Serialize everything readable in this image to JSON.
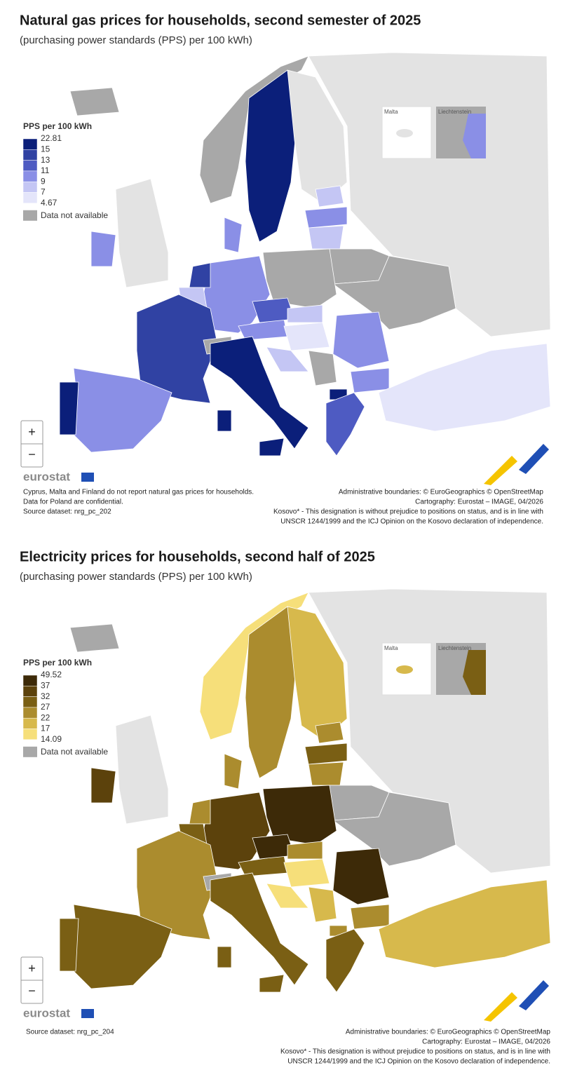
{
  "maps": [
    {
      "title": "Natural gas prices for households, second semester of 2025",
      "subtitle": "(purchasing power standards (PPS) per 100 kWh)",
      "legend": {
        "title": "PPS per 100 kWh",
        "breaks": [
          22.81,
          15,
          13,
          11,
          9,
          7,
          4.67
        ],
        "colors": [
          "#0b1f7a",
          "#3042a3",
          "#4e5bc2",
          "#8a8fe6",
          "#c4c6f4",
          "#e4e5fa"
        ],
        "na_label": "Data not available"
      },
      "insets": [
        "Malta",
        "Liechtenstein"
      ],
      "controls": [
        "+",
        "−"
      ],
      "logo": "eurostat",
      "notes_left": [
        "Cyprus, Malta and Finland do not report natural gas prices for households.",
        "Data for Poland are confidential.",
        "Source dataset: nrg_pc_202"
      ],
      "notes_right": [
        "Administrative boundaries: © EuroGeographics © OpenStreetMap",
        "Cartography: Eurostat – IMAGE, 04/2026",
        "Kosovo* - This designation is without prejudice to positions on status, and is in line with",
        "UNSCR 1244/1999 and the ICJ Opinion on the Kosovo declaration of independence."
      ]
    },
    {
      "title": "Electricity prices for households, second half of 2025",
      "subtitle": "(purchasing power standards (PPS) per 100 kWh)",
      "legend": {
        "title": "PPS per 100 kWh",
        "breaks": [
          49.52,
          37,
          32,
          27,
          22,
          17,
          14.09
        ],
        "colors": [
          "#3d2a08",
          "#5c420c",
          "#7a5f14",
          "#ab8c2e",
          "#d7b94c",
          "#f6df7a"
        ],
        "na_label": "Data not available"
      },
      "insets": [
        "Malta",
        "Liechtenstein"
      ],
      "controls": [
        "+",
        "−"
      ],
      "logo": "eurostat",
      "notes_left": [
        "Source dataset: nrg_pc_204"
      ],
      "notes_right": [
        "Administrative boundaries: © EuroGeographics © OpenStreetMap",
        "Cartography: Eurostat – IMAGE, 04/2026",
        "Kosovo* - This designation is without prejudice to positions on status, and is in line with",
        "UNSCR 1244/1999 and the ICJ Opinion on the Kosovo declaration of independence."
      ]
    }
  ]
}
